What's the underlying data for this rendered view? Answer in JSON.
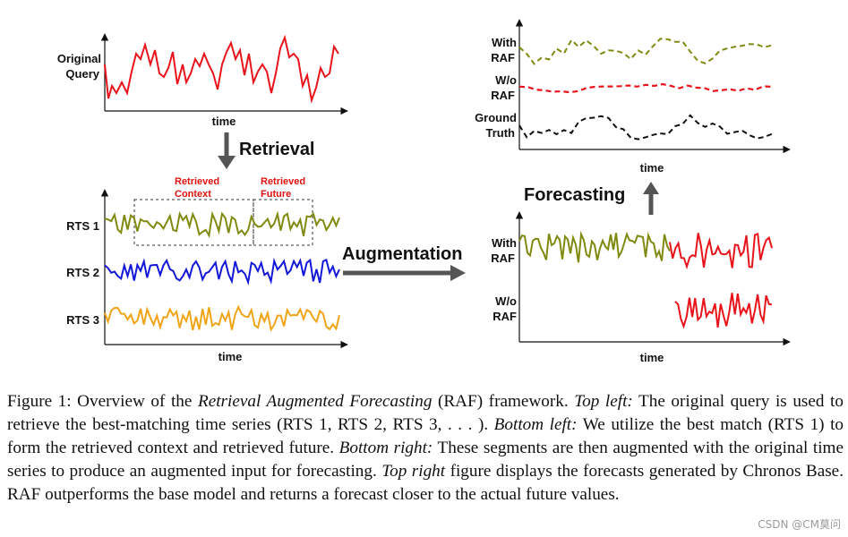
{
  "panels": {
    "top_left": {
      "query_label": [
        "Original",
        "Query"
      ],
      "xlabel": "time"
    },
    "arrow_retrieval": "Retrieval",
    "bottom_left": {
      "box_labels": {
        "context": [
          "Retrieved",
          "Context"
        ],
        "future": [
          "Retrieved",
          "Future"
        ]
      },
      "series_labels": [
        "RTS 1",
        "RTS 2",
        "RTS 3"
      ],
      "xlabel": "time"
    },
    "arrow_augmentation": "Augmentation",
    "bottom_right": {
      "with_label": [
        "With",
        "RAF"
      ],
      "without_label": [
        "W/o",
        "RAF"
      ],
      "xlabel": "time"
    },
    "arrow_forecasting": "Forecasting",
    "top_right": {
      "with_label": [
        "With",
        "RAF"
      ],
      "without_label": [
        "W/o",
        "RAF"
      ],
      "truth_label": [
        "Ground",
        "Truth"
      ],
      "xlabel": "time"
    }
  },
  "colors": {
    "query": "#e8141c",
    "rts1": "#808a10",
    "rts2": "#1418d8",
    "rts3": "#f0a418",
    "forecast": "#e8141c",
    "truth": "#111111",
    "arrow": "#555555"
  },
  "caption": {
    "fig_label": "Figure 1: Overview of the ",
    "fig_title": "Retrieval Augmented Forecasting",
    "s1": " (RAF) framework. ",
    "tl": "Top left:",
    "s2": " The original query is used to retrieve the best-matching time series (RTS 1, RTS 2, RTS 3, . . . ). ",
    "bl": "Bottom left:",
    "s3": " We utilize the best match (RTS 1) to form the retrieved context and retrieved future. ",
    "br": "Bottom right:",
    "s4": " These segments are then augmented with the original time series to produce an augmented input for forecasting. ",
    "tr": "Top right",
    "s5": " figure displays the forecasts generated by Chronos Base. RAF outperforms the base model and returns a forecast closer to the actual future values."
  },
  "watermark": "CSDN @CM莫问"
}
